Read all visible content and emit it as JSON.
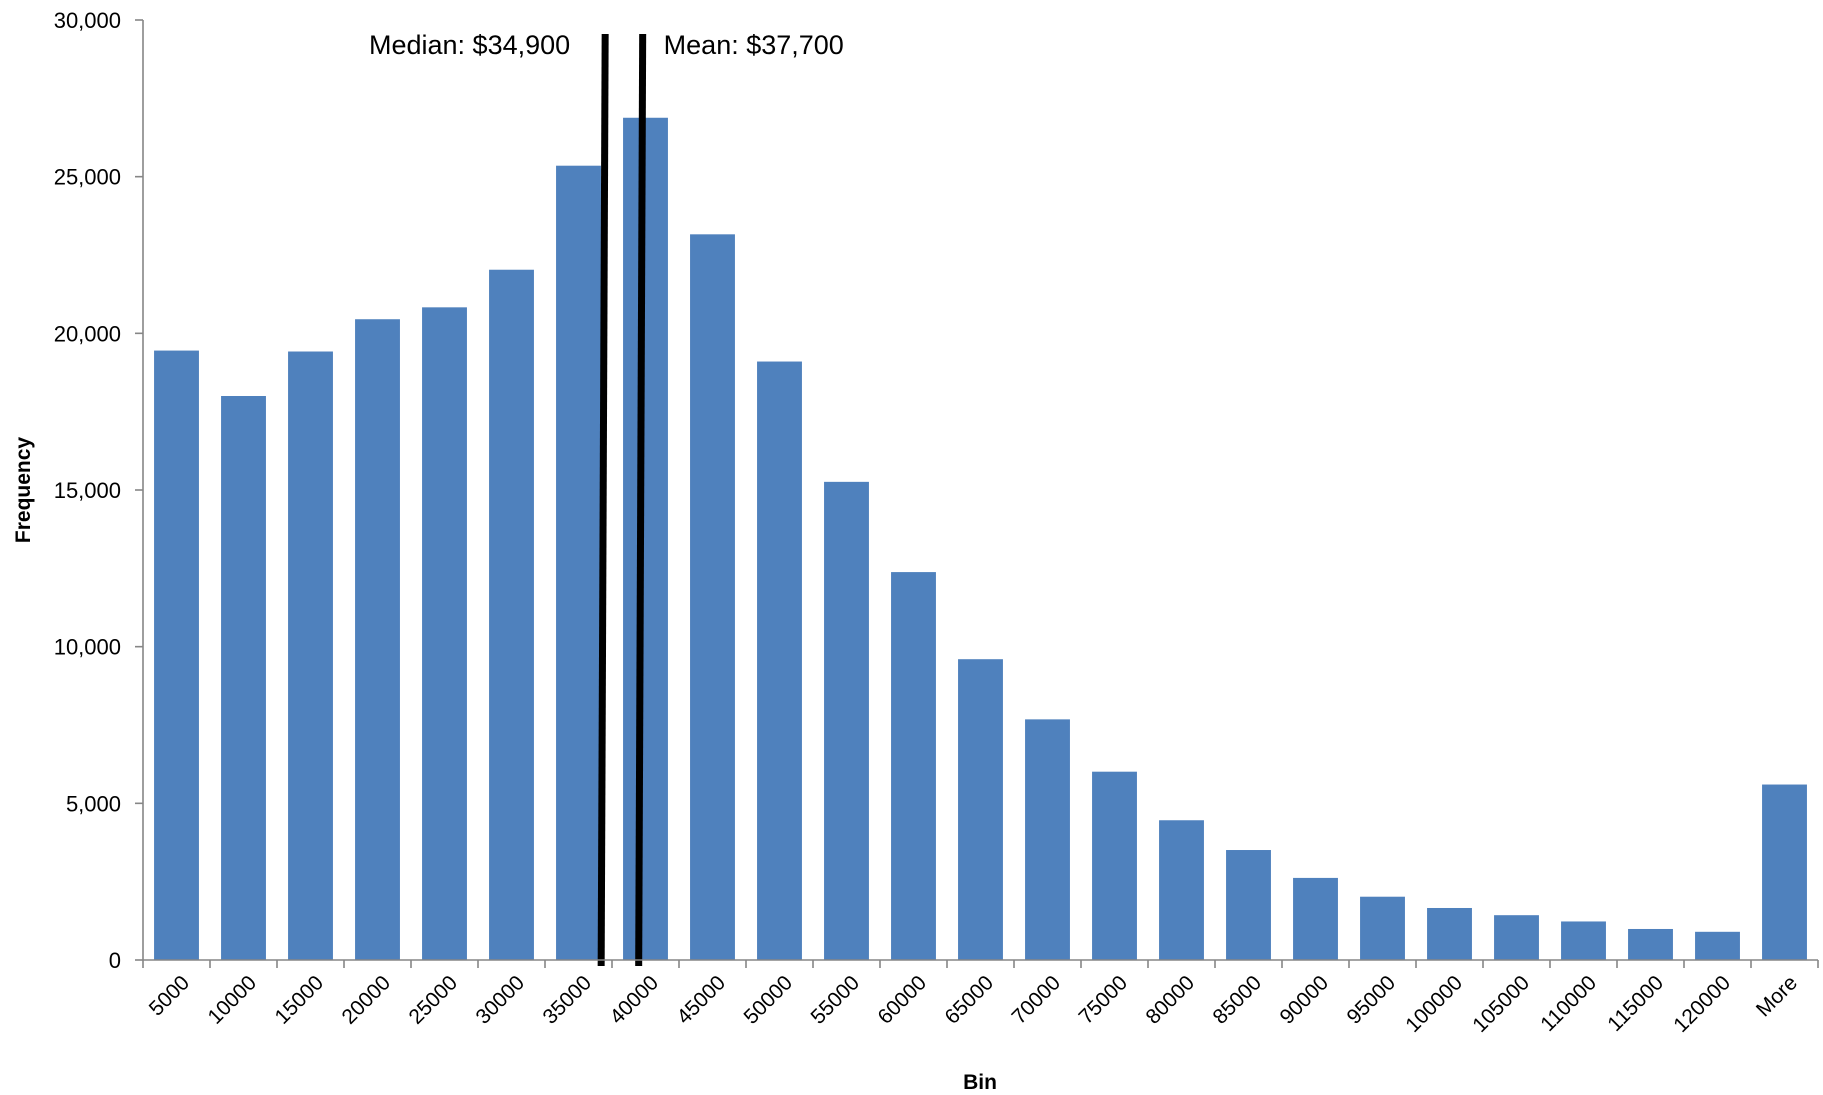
{
  "chart_data": {
    "type": "bar",
    "xlabel": "Bin",
    "ylabel": "Frequency",
    "ylim": [
      0,
      30000
    ],
    "yticks": [
      0,
      5000,
      10000,
      15000,
      20000,
      25000,
      30000
    ],
    "ytick_labels": [
      "0",
      "5,000",
      "10,000",
      "15,000",
      "20,000",
      "25,000",
      "30,000"
    ],
    "grid": false,
    "legend": "none",
    "bar_color": "#4f81bd",
    "categories": [
      "5000",
      "10000",
      "15000",
      "20000",
      "25000",
      "30000",
      "35000",
      "40000",
      "45000",
      "50000",
      "55000",
      "60000",
      "65000",
      "70000",
      "75000",
      "80000",
      "85000",
      "90000",
      "95000",
      "100000",
      "105000",
      "110000",
      "115000",
      "120000",
      "More"
    ],
    "values": [
      19450,
      18000,
      19420,
      20450,
      20830,
      22030,
      25350,
      26880,
      23160,
      19100,
      15260,
      12380,
      9600,
      7680,
      6010,
      4460,
      3510,
      2620,
      2020,
      1660,
      1430,
      1230,
      990,
      900,
      5600
    ],
    "annotations": [
      {
        "label": "Median: $34,900",
        "value": 34900
      },
      {
        "label": "Mean: $37,700",
        "value": 37700
      }
    ]
  }
}
